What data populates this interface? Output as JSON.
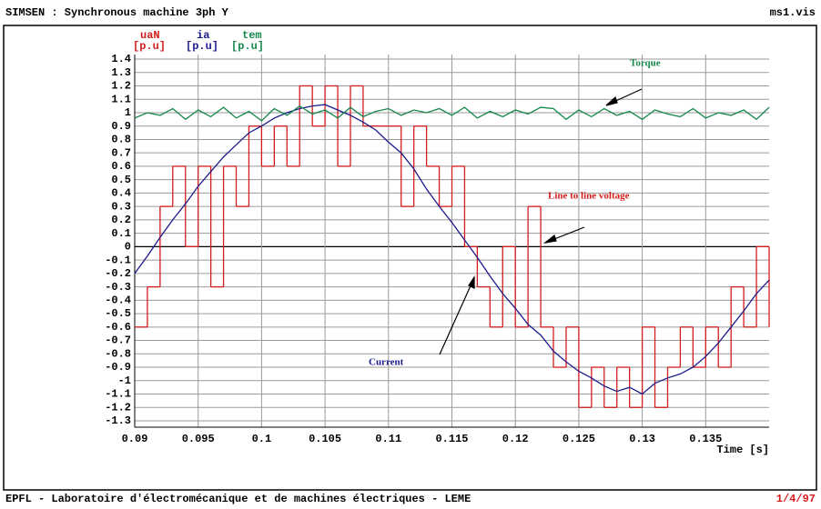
{
  "header": {
    "title": "SIMSEN : Synchronous machine 3ph Y",
    "file": "ms1.vis"
  },
  "footer": {
    "text": "EPFL - Laboratoire d'électromécanique et de machines électriques - LEME",
    "date": "1/4/97"
  },
  "chart_data": {
    "type": "line",
    "xlabel": "Time [s]",
    "xlim": [
      0.09,
      0.14
    ],
    "ylim": [
      -1.3,
      1.4
    ],
    "xticks": [
      0.09,
      0.095,
      0.1,
      0.105,
      0.11,
      0.115,
      0.12,
      0.125,
      0.13,
      0.135
    ],
    "yticks": [
      1.4,
      1.3,
      1.2,
      1.1,
      1,
      0.9,
      0.8,
      0.7,
      0.6,
      0.5,
      0.4,
      0.3,
      0.2,
      0.1,
      0,
      -0.1,
      -0.2,
      -0.3,
      -0.4,
      -0.5,
      -0.6,
      -0.7,
      -0.8,
      -0.9,
      -1,
      -1.1,
      -1.2,
      -1.3
    ],
    "grid": true,
    "x": [
      0.09,
      0.091,
      0.092,
      0.093,
      0.094,
      0.095,
      0.096,
      0.097,
      0.098,
      0.099,
      0.1,
      0.101,
      0.102,
      0.103,
      0.104,
      0.105,
      0.106,
      0.107,
      0.108,
      0.109,
      0.11,
      0.111,
      0.112,
      0.113,
      0.114,
      0.115,
      0.116,
      0.117,
      0.118,
      0.119,
      0.12,
      0.121,
      0.122,
      0.123,
      0.124,
      0.125,
      0.126,
      0.127,
      0.128,
      0.129,
      0.13,
      0.131,
      0.132,
      0.133,
      0.134,
      0.135,
      0.136,
      0.137,
      0.138,
      0.139,
      0.14
    ],
    "series": [
      {
        "name": "uaN",
        "unit": "[p.u]",
        "color": "#d41c1c",
        "step": true,
        "values": [
          -0.6,
          -0.3,
          0.3,
          0.6,
          0,
          0.6,
          -0.3,
          0.6,
          0.3,
          0.9,
          0.6,
          0.9,
          0.6,
          1.2,
          0.9,
          1.2,
          0.6,
          1.2,
          0.9,
          0.9,
          0.9,
          0.3,
          0.9,
          0.6,
          0.3,
          0.6,
          0,
          -0.3,
          -0.6,
          0,
          -0.6,
          0.3,
          -0.6,
          -0.9,
          -0.6,
          -1.2,
          -0.9,
          -1.2,
          -0.9,
          -1.2,
          -0.6,
          -1.2,
          -0.9,
          -0.6,
          -0.9,
          -0.6,
          -0.9,
          -0.3,
          -0.6,
          0,
          -0.6
        ]
      },
      {
        "name": "ia",
        "unit": "[p.u]",
        "color": "#1c1c8c",
        "values": [
          -0.2,
          -0.07,
          0.07,
          0.2,
          0.32,
          0.45,
          0.56,
          0.67,
          0.76,
          0.85,
          0.9,
          0.96,
          1.0,
          1.03,
          1.05,
          1.06,
          1.02,
          0.98,
          0.93,
          0.87,
          0.78,
          0.7,
          0.58,
          0.43,
          0.3,
          0.18,
          0.05,
          -0.08,
          -0.22,
          -0.35,
          -0.46,
          -0.58,
          -0.66,
          -0.78,
          -0.86,
          -0.93,
          -0.98,
          -1.04,
          -1.08,
          -1.05,
          -1.1,
          -1.02,
          -0.98,
          -0.95,
          -0.9,
          -0.82,
          -0.72,
          -0.6,
          -0.48,
          -0.35,
          -0.25
        ]
      },
      {
        "name": "tem",
        "unit": "[p.u]",
        "color": "#14874a",
        "values": [
          0.96,
          1.0,
          0.98,
          1.03,
          0.95,
          1.02,
          0.97,
          1.04,
          0.96,
          1.01,
          0.94,
          1.03,
          0.98,
          1.05,
          0.99,
          1.02,
          0.96,
          1.04,
          0.97,
          1.01,
          1.03,
          0.98,
          1.02,
          1.0,
          1.03,
          0.98,
          1.04,
          0.96,
          1.01,
          0.97,
          1.02,
          0.99,
          1.04,
          1.03,
          0.95,
          1.02,
          0.97,
          1.03,
          0.98,
          1.01,
          0.95,
          1.02,
          0.99,
          0.97,
          1.03,
          0.96,
          1.0,
          0.98,
          1.02,
          0.95,
          1.04
        ]
      }
    ],
    "annotations": [
      "Torque",
      "Line to line voltage",
      "Current"
    ]
  }
}
